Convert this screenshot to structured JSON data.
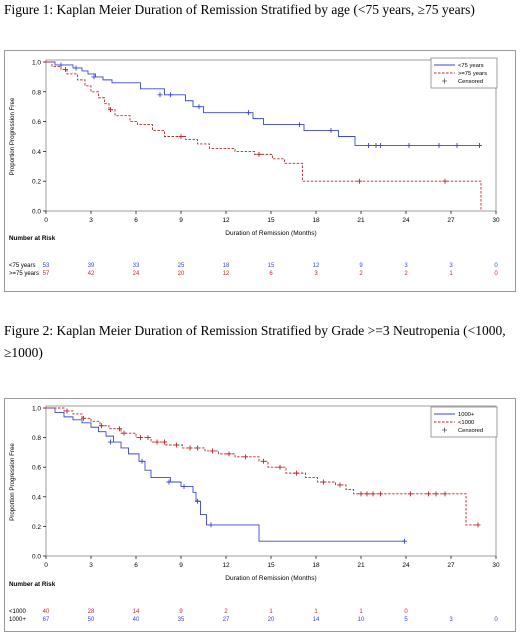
{
  "captions": {
    "fig1": "Figure 1: Kaplan Meier Duration of Remission Stratified by age (<75 years, ≥75 years)",
    "fig2": "Figure 2: Kaplan Meier Duration of Remission Stratified by Grade >=3 Neutropenia (<1000, ≥1000)"
  },
  "colors": {
    "blue": "#3a47d6",
    "red": "#c0282d",
    "axis": "#000000",
    "frame": "#999999"
  },
  "chart_data": [
    {
      "type": "line",
      "xlabel": "Duration of Remission (Months)",
      "ylabel": "Proportion Progression Free",
      "xticks": [
        0,
        3,
        6,
        9,
        12,
        15,
        18,
        21,
        24,
        27,
        30
      ],
      "yticks": [
        "0.0",
        "0.2",
        "0.4",
        "0.6",
        "0.8",
        "1.0"
      ],
      "xlim": [
        0,
        30
      ],
      "ylim": [
        0,
        1
      ],
      "legend_position": "top-right",
      "censored_label": "Censored",
      "series": [
        {
          "name": "<75 years",
          "style": "solid",
          "color": "#3a47d6",
          "steps": [
            [
              0,
              1.0
            ],
            [
              0.6,
              0.98
            ],
            [
              1.8,
              0.96
            ],
            [
              2.4,
              0.94
            ],
            [
              2.8,
              0.92
            ],
            [
              3.3,
              0.9
            ],
            [
              3.8,
              0.88
            ],
            [
              4.4,
              0.86
            ],
            [
              6.3,
              0.82
            ],
            [
              7.9,
              0.78
            ],
            [
              9.3,
              0.74
            ],
            [
              9.8,
              0.7
            ],
            [
              10.5,
              0.66
            ],
            [
              13.8,
              0.62
            ],
            [
              14.5,
              0.58
            ],
            [
              17.2,
              0.54
            ],
            [
              19.5,
              0.5
            ],
            [
              20.6,
              0.44
            ],
            [
              29.0,
              0.44
            ]
          ],
          "censored": [
            [
              1.0,
              0.98
            ],
            [
              2.0,
              0.96
            ],
            [
              3.2,
              0.9
            ],
            [
              7.6,
              0.78
            ],
            [
              8.3,
              0.78
            ],
            [
              10.2,
              0.7
            ],
            [
              13.5,
              0.66
            ],
            [
              16.9,
              0.58
            ],
            [
              19.0,
              0.54
            ],
            [
              21.5,
              0.44
            ],
            [
              22.0,
              0.44
            ],
            [
              22.3,
              0.44
            ],
            [
              24.2,
              0.44
            ],
            [
              26.2,
              0.44
            ],
            [
              27.4,
              0.44
            ],
            [
              28.9,
              0.44
            ]
          ],
          "at_risk": [
            "53",
            "39",
            "33",
            "25",
            "18",
            "15",
            "12",
            "9",
            "3",
            "3",
            "0"
          ]
        },
        {
          "name": ">=75 years",
          "style": "dashed",
          "color": "#c0282d",
          "steps": [
            [
              0,
              1.0
            ],
            [
              0.4,
              0.97
            ],
            [
              1.0,
              0.95
            ],
            [
              1.4,
              0.92
            ],
            [
              2.1,
              0.88
            ],
            [
              2.6,
              0.84
            ],
            [
              3.0,
              0.8
            ],
            [
              3.5,
              0.76
            ],
            [
              3.9,
              0.72
            ],
            [
              4.2,
              0.68
            ],
            [
              4.6,
              0.64
            ],
            [
              5.6,
              0.6
            ],
            [
              6.1,
              0.58
            ],
            [
              7.1,
              0.54
            ],
            [
              7.9,
              0.5
            ],
            [
              9.3,
              0.48
            ],
            [
              10.1,
              0.45
            ],
            [
              10.9,
              0.42
            ],
            [
              12.6,
              0.4
            ],
            [
              13.9,
              0.38
            ],
            [
              15.1,
              0.35
            ],
            [
              15.9,
              0.32
            ],
            [
              17.1,
              0.2
            ],
            [
              29.0,
              0.2
            ],
            [
              29.0,
              0.0
            ]
          ],
          "censored": [
            [
              1.3,
              0.95
            ],
            [
              4.3,
              0.68
            ],
            [
              9.0,
              0.5
            ],
            [
              14.2,
              0.38
            ],
            [
              20.9,
              0.2
            ],
            [
              26.6,
              0.2
            ]
          ],
          "at_risk": [
            "57",
            "42",
            "24",
            "20",
            "12",
            "6",
            "3",
            "2",
            "2",
            "1",
            "0"
          ]
        }
      ],
      "at_risk_title": "Number at Risk",
      "at_risk_rows": [
        "<75 years",
        ">=75 years"
      ]
    },
    {
      "type": "line",
      "xlabel": "Duration of Remission (Months)",
      "ylabel": "Proportion Progression Free",
      "xticks": [
        0,
        3,
        6,
        9,
        12,
        15,
        18,
        21,
        24,
        27,
        30
      ],
      "yticks": [
        "0.0",
        "0.2",
        "0.4",
        "0.6",
        "0.8",
        "1.0"
      ],
      "xlim": [
        0,
        30
      ],
      "ylim": [
        0,
        1
      ],
      "legend_position": "top-right",
      "censored_label": "Censored",
      "series": [
        {
          "name": "1000+",
          "style": "solid",
          "color": "#3a47d6",
          "steps": [
            [
              0,
              1.0
            ],
            [
              0.6,
              0.97
            ],
            [
              1.2,
              0.94
            ],
            [
              1.8,
              0.92
            ],
            [
              2.4,
              0.9
            ],
            [
              3.0,
              0.87
            ],
            [
              3.5,
              0.84
            ],
            [
              4.0,
              0.81
            ],
            [
              4.5,
              0.77
            ],
            [
              5.0,
              0.73
            ],
            [
              5.5,
              0.69
            ],
            [
              6.2,
              0.64
            ],
            [
              6.6,
              0.58
            ],
            [
              7.0,
              0.53
            ],
            [
              8.3,
              0.5
            ],
            [
              9.0,
              0.47
            ],
            [
              9.8,
              0.43
            ],
            [
              10.0,
              0.37
            ],
            [
              10.3,
              0.28
            ],
            [
              10.7,
              0.21
            ],
            [
              14.2,
              0.1
            ],
            [
              23.9,
              0.1
            ]
          ],
          "censored": [
            [
              4.3,
              0.77
            ],
            [
              6.4,
              0.64
            ],
            [
              8.2,
              0.5
            ],
            [
              9.2,
              0.47
            ],
            [
              10.1,
              0.37
            ],
            [
              11.0,
              0.21
            ],
            [
              23.9,
              0.1
            ]
          ],
          "at_risk": [
            "67",
            "50",
            "40",
            "35",
            "27",
            "20",
            "14",
            "10",
            "5",
            "3",
            "0"
          ]
        },
        {
          "name": "<1000",
          "style": "dashed",
          "color": "#c0282d",
          "steps": [
            [
              0,
              1.0
            ],
            [
              1.2,
              0.98
            ],
            [
              1.8,
              0.96
            ],
            [
              2.4,
              0.93
            ],
            [
              3.0,
              0.91
            ],
            [
              3.6,
              0.88
            ],
            [
              4.2,
              0.86
            ],
            [
              5.0,
              0.83
            ],
            [
              6.0,
              0.8
            ],
            [
              7.0,
              0.77
            ],
            [
              8.0,
              0.75
            ],
            [
              9.1,
              0.73
            ],
            [
              10.6,
              0.71
            ],
            [
              11.5,
              0.69
            ],
            [
              12.6,
              0.67
            ],
            [
              14.2,
              0.64
            ],
            [
              14.8,
              0.6
            ],
            [
              16.0,
              0.56
            ],
            [
              17.3,
              0.53
            ],
            [
              18.1,
              0.5
            ],
            [
              19.3,
              0.48
            ],
            [
              20.0,
              0.45
            ],
            [
              20.5,
              0.42
            ],
            [
              27.2,
              0.42
            ],
            [
              28.0,
              0.21
            ],
            [
              28.8,
              0.21
            ]
          ],
          "censored": [
            [
              1.4,
              0.98
            ],
            [
              2.5,
              0.93
            ],
            [
              3.7,
              0.88
            ],
            [
              4.9,
              0.86
            ],
            [
              5.2,
              0.83
            ],
            [
              6.3,
              0.8
            ],
            [
              6.8,
              0.8
            ],
            [
              7.4,
              0.77
            ],
            [
              7.9,
              0.77
            ],
            [
              8.7,
              0.75
            ],
            [
              9.6,
              0.73
            ],
            [
              10.1,
              0.73
            ],
            [
              11.1,
              0.71
            ],
            [
              12.2,
              0.69
            ],
            [
              13.3,
              0.67
            ],
            [
              14.5,
              0.64
            ],
            [
              15.6,
              0.6
            ],
            [
              16.7,
              0.56
            ],
            [
              18.5,
              0.5
            ],
            [
              19.6,
              0.48
            ],
            [
              21.0,
              0.42
            ],
            [
              21.4,
              0.42
            ],
            [
              21.8,
              0.42
            ],
            [
              22.3,
              0.42
            ],
            [
              24.3,
              0.42
            ],
            [
              25.5,
              0.42
            ],
            [
              26.0,
              0.42
            ],
            [
              26.6,
              0.42
            ],
            [
              28.8,
              0.21
            ]
          ],
          "at_risk": [
            "40",
            "28",
            "14",
            "9",
            "2",
            "1",
            "1",
            "1",
            "0",
            "",
            ""
          ]
        }
      ],
      "at_risk_title": "Number at Risk",
      "at_risk_rows": [
        "<1000",
        "1000+"
      ]
    }
  ]
}
